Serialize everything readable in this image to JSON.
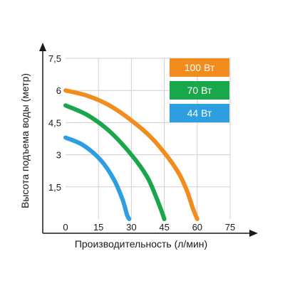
{
  "chart_data": {
    "type": "line",
    "title": "",
    "xlabel": "Производительность (л/мин)",
    "ylabel": "Высота подъема воды (метр)",
    "xlim": [
      0,
      75
    ],
    "ylim": [
      0,
      7.5
    ],
    "x_ticks": [
      0,
      15,
      30,
      45,
      60,
      75
    ],
    "x_tick_labels": [
      "0",
      "15",
      "30",
      "45",
      "60",
      "75"
    ],
    "y_ticks": [
      1.5,
      3,
      4.5,
      6,
      7.5
    ],
    "y_tick_labels": [
      "1,5",
      "3",
      "4,5",
      "6",
      "7,5"
    ],
    "grid": true,
    "legend_position": "top-right",
    "series": [
      {
        "name": "100 Вт",
        "color": "#f28c1c",
        "points": [
          [
            0,
            6.0
          ],
          [
            10,
            5.75
          ],
          [
            20,
            5.3
          ],
          [
            30,
            4.6
          ],
          [
            40,
            3.7
          ],
          [
            50,
            2.4
          ],
          [
            55,
            1.4
          ],
          [
            58,
            0.5
          ],
          [
            60,
            0
          ]
        ]
      },
      {
        "name": "70 Вт",
        "color": "#1aa64a",
        "points": [
          [
            0,
            5.3
          ],
          [
            10,
            4.85
          ],
          [
            20,
            4.1
          ],
          [
            30,
            3.0
          ],
          [
            37,
            2.0
          ],
          [
            41,
            1.1
          ],
          [
            44,
            0.3
          ],
          [
            45,
            0
          ]
        ]
      },
      {
        "name": "44 Вт",
        "color": "#2d9fe0",
        "points": [
          [
            0,
            3.8
          ],
          [
            8,
            3.45
          ],
          [
            16,
            2.75
          ],
          [
            22,
            1.85
          ],
          [
            26,
            0.9
          ],
          [
            28,
            0.2
          ],
          [
            29,
            0
          ]
        ]
      }
    ]
  }
}
